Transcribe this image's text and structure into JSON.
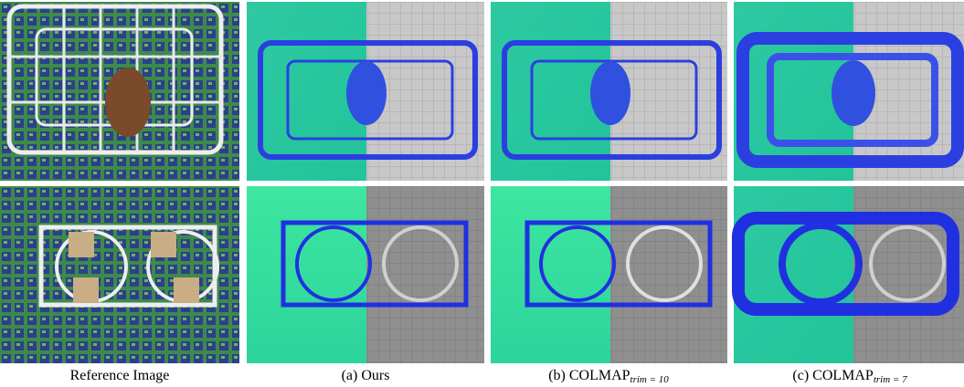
{
  "figure": {
    "captions": [
      {
        "text": "Reference Image"
      },
      {
        "text": "(a) Ours"
      },
      {
        "text": "(b) COLMAP",
        "subscript": "trim = 10"
      },
      {
        "text": "(c) COLMAP",
        "subscript": "trim = 7"
      }
    ]
  }
}
